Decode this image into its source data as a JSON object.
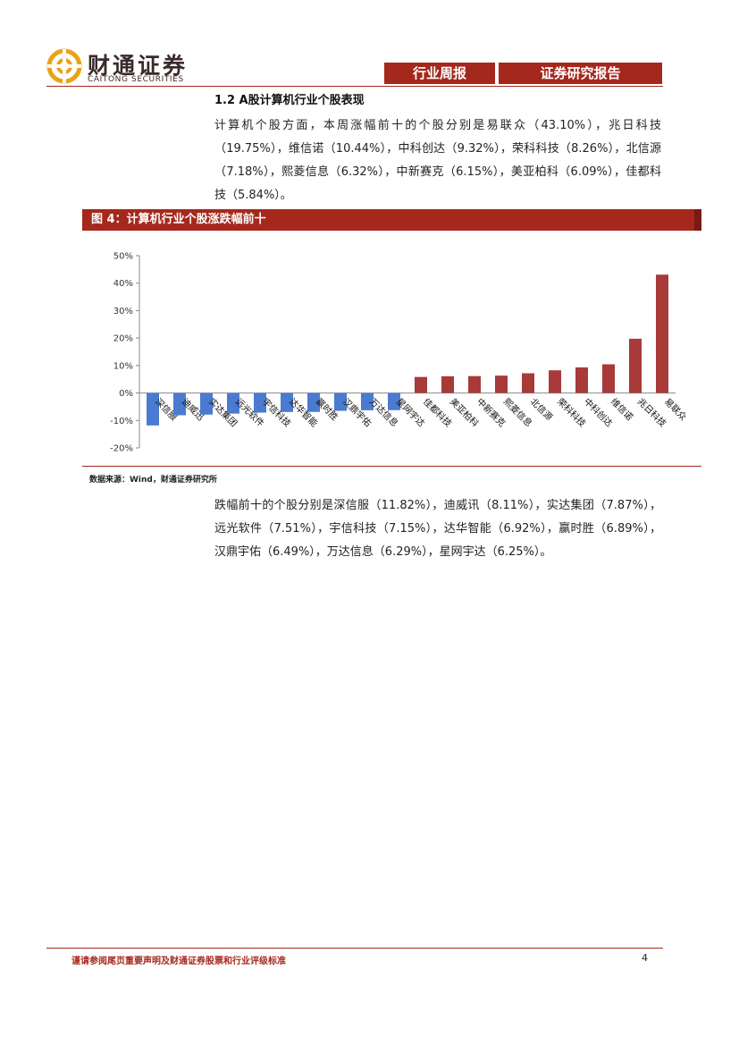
{
  "header": {
    "logo_name": "财通证券",
    "logo_en": "CAITONG SECURITIES",
    "tab1": "行业周报",
    "tab2": "证券研究报告"
  },
  "section": {
    "title": "1.2  A股计算机行业个股表现",
    "paragraph1": "计算机个股方面，本周涨幅前十的个股分别是易联众（43.10%），兆日科技（19.75%），维信诺（10.44%），中科创达（9.32%），荣科科技（8.26%），北信源（7.18%），熙菱信息（6.32%），中新赛克（6.15%），美亚柏科（6.09%），佳都科技（5.84%）。",
    "paragraph2": "跌幅前十的个股分别是深信服（11.82%），迪威讯（8.11%），实达集团（7.87%），远光软件（7.51%），宇信科技（7.15%），达华智能（6.92%），赢时胜（6.89%），汉鼎宇佑（6.49%），万达信息（6.29%），星网宇达（6.25%）。"
  },
  "figure": {
    "label": "图 4：计算机行业个股涨跌幅前十",
    "source": "数据来源：Wind，财通证券研究所"
  },
  "chart_data": {
    "type": "bar",
    "categories": [
      "深信服",
      "迪威迅",
      "实达集团",
      "远光软件",
      "宇信科技",
      "达华智能",
      "赢时胜",
      "汉鼎宇佑",
      "万达信息",
      "星网宇达",
      "佳都科技",
      "美亚柏科",
      "中新赛克",
      "熙菱信息",
      "北信源",
      "荣科科技",
      "中科创达",
      "维信诺",
      "兆日科技",
      "易联众"
    ],
    "values": [
      -11.82,
      -8.11,
      -7.87,
      -7.51,
      -7.15,
      -6.92,
      -6.89,
      -6.49,
      -6.29,
      -6.25,
      5.84,
      6.09,
      6.15,
      6.32,
      7.18,
      8.26,
      9.32,
      10.44,
      19.75,
      43.1
    ],
    "ylim": [
      -20,
      50
    ],
    "yticks": [
      "-20%",
      "-10%",
      "0%",
      "10%",
      "20%",
      "30%",
      "40%",
      "50%"
    ],
    "colors": {
      "negative": "#4a7bd0",
      "positive": "#a83a3a"
    },
    "grid": false,
    "legend": "none"
  },
  "footer": {
    "disclaimer": "谨请参阅尾页重要声明及财通证券股票和行业评级标准",
    "page": "4"
  }
}
